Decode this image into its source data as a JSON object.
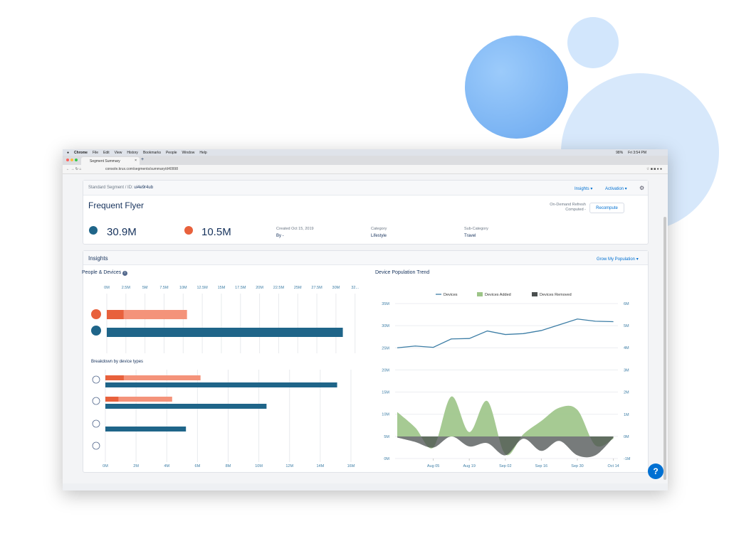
{
  "browser": {
    "menu": [
      "Chrome",
      "File",
      "Edit",
      "View",
      "History",
      "Bookmarks",
      "People",
      "Window",
      "Help"
    ],
    "clock": "Fri 3:54 PM",
    "battery": "98%",
    "tab_title": "Segment Summary",
    "url": "console.krux.com/segments/summary/d40998"
  },
  "header": {
    "breadcrumb": "Standard Segment / ID:",
    "segment_id": "ui4e9r4ub",
    "menu_insights": "Insights",
    "menu_activation": "Activation",
    "title": "Frequent Flyer",
    "refresh_label": "On-Demand Refresh",
    "computed_label": "Computed -",
    "recompute": "Recompute",
    "devices_count": "30.9M",
    "people_count": "10.5M",
    "created": "Created Oct 15, 2019",
    "by": "By -",
    "category_label": "Category",
    "category": "Lifestyle",
    "subcategory_label": "Sub-Category",
    "subcategory": "Travel"
  },
  "insights": {
    "title": "Insights",
    "grow": "Grow My Population",
    "left_title": "People & Devices",
    "breakdown_title": "Breakdown by device types",
    "right_title": "Device Population Trend"
  },
  "colors": {
    "people_dark": "#e8613c",
    "people_light": "#f4937a",
    "devices": "#1f6589",
    "line": "#3d7ea6",
    "added": "#9cc487",
    "removed": "#4a4f4f",
    "accent": "#0070d2"
  },
  "chart_data": [
    {
      "type": "bar",
      "orientation": "horizontal",
      "stacked": true,
      "ticks": [
        "0M",
        "2.5M",
        "5M",
        "7.5M",
        "10M",
        "12.5M",
        "15M",
        "17.5M",
        "20M",
        "22.5M",
        "25M",
        "27.5M",
        "30M",
        "32..."
      ],
      "xlim": [
        0,
        32.5
      ],
      "unit": "M",
      "rows": [
        {
          "icon": "people-icon",
          "segments": [
            2.2,
            10.5
          ]
        },
        {
          "icon": "devices-icon",
          "segments": [
            30.9
          ]
        }
      ]
    },
    {
      "type": "bar",
      "orientation": "horizontal",
      "title": "Breakdown by device types",
      "ticks": [
        "0M",
        "2M",
        "4M",
        "6M",
        "8M",
        "10M",
        "12M",
        "14M",
        "16M"
      ],
      "xlim": [
        0,
        16
      ],
      "unit": "M",
      "rows": [
        {
          "icon": "globe-icon",
          "people": [
            1.2,
            6.2
          ],
          "devices": 15.1
        },
        {
          "icon": "mobile-icon",
          "people": [
            0.85,
            4.35
          ],
          "devices": 10.5
        },
        {
          "icon": "compass-icon",
          "people": null,
          "devices": 5.25
        },
        {
          "icon": "connected-tv-icon",
          "people": null,
          "devices": 0
        }
      ]
    },
    {
      "type": "line",
      "title": "Device Population Trend",
      "legend": [
        "Devices",
        "Devices Added",
        "Devices Removed"
      ],
      "legend_position": "top",
      "x": [
        "Jul 22",
        "Jul 29",
        "Aug 05",
        "Aug 12",
        "Aug 19",
        "Aug 26",
        "Sep 02",
        "Sep 09",
        "Sep 16",
        "Sep 23",
        "Sep 30",
        "Oct 07",
        "Oct 14"
      ],
      "xticks": [
        "Aug 05",
        "Aug 19",
        "Sep 02",
        "Sep 16",
        "Sep 30",
        "Oct 14"
      ],
      "left_ticks": [
        "0M",
        "5M",
        "10M",
        "15M",
        "20M",
        "25M",
        "30M",
        "35M"
      ],
      "ylim_left": [
        0,
        35
      ],
      "right_ticks": [
        "-1M",
        "0M",
        "1M",
        "2M",
        "3M",
        "4M",
        "5M",
        "6M"
      ],
      "ylim_right": [
        -1,
        6
      ],
      "series": [
        {
          "name": "Devices",
          "axis": "left",
          "type": "line",
          "values": [
            25.0,
            25.4,
            25.1,
            27.0,
            27.1,
            28.8,
            28.0,
            28.2,
            28.9,
            30.2,
            31.5,
            31.0,
            30.9
          ]
        },
        {
          "name": "Devices Added",
          "axis": "right",
          "type": "area",
          "values": [
            1.1,
            0.4,
            -0.5,
            1.8,
            0.2,
            1.6,
            -0.8,
            0.1,
            0.7,
            1.3,
            1.2,
            -0.4,
            -0.1
          ]
        },
        {
          "name": "Devices Removed",
          "axis": "right",
          "type": "area",
          "values": [
            -0.05,
            -0.25,
            -0.5,
            0,
            -0.45,
            -0.3,
            -0.85,
            -0.1,
            -0.65,
            -0.2,
            -0.85,
            -0.85,
            -0.05
          ]
        }
      ]
    }
  ],
  "help": "?"
}
